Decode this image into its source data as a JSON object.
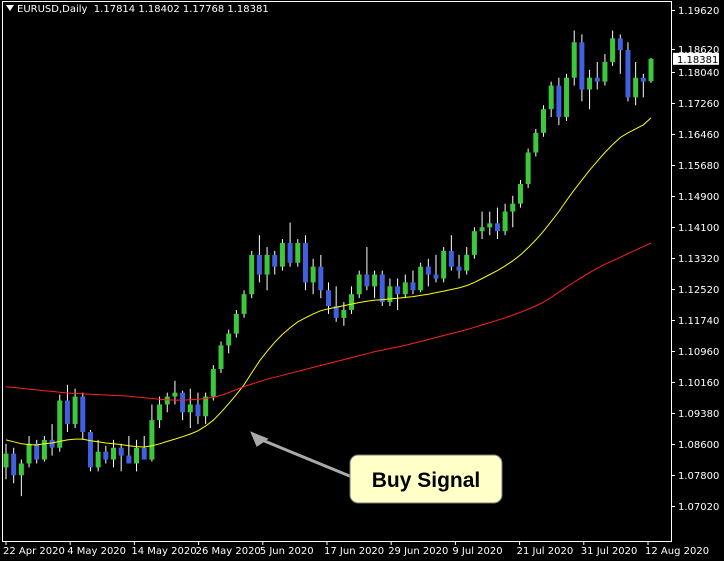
{
  "header": {
    "symbol": "EURUSD,Daily",
    "ohlc": "1.17814 1.18402 1.17768 1.18381"
  },
  "current_price_label": "1.18381",
  "annotation": {
    "text": "Buy Signal"
  },
  "colors": {
    "background": "#000000",
    "bull": "#3cc83c",
    "bear": "#4060e0",
    "fast_ma": "#ffff00",
    "slow_ma": "#ff2020",
    "axis": "#ffffff",
    "callout_bg": "#ffffc8"
  },
  "chart_data": {
    "type": "candlestick",
    "title": "EURUSD,Daily",
    "ylim": [
      1.0702,
      1.1962
    ],
    "y_ticks": [
      "1.19620",
      "1.18620",
      "1.18040",
      "1.17260",
      "1.16460",
      "1.15680",
      "1.14900",
      "1.14100",
      "1.13320",
      "1.12520",
      "1.11740",
      "1.10960",
      "1.10160",
      "1.09380",
      "1.08600",
      "1.07800",
      "1.07020"
    ],
    "x_ticks": [
      "22 Apr 2020",
      "4 May 2020",
      "14 May 2020",
      "26 May 2020",
      "5 Jun 2020",
      "17 Jun 2020",
      "29 Jun 2020",
      "9 Jul 2020",
      "21 Jul 2020",
      "31 Jul 2020",
      "12 Aug 2020"
    ],
    "candles": [
      [
        1.08,
        1.086,
        1.077,
        1.0835
      ],
      [
        1.0835,
        1.085,
        1.076,
        1.078
      ],
      [
        1.078,
        1.082,
        1.0727,
        1.081
      ],
      [
        1.081,
        1.088,
        1.08,
        1.086
      ],
      [
        1.086,
        1.087,
        1.081,
        1.082
      ],
      [
        1.082,
        1.088,
        1.0815,
        1.087
      ],
      [
        1.087,
        1.091,
        1.083,
        1.085
      ],
      [
        1.085,
        1.0985,
        1.084,
        1.097
      ],
      [
        1.097,
        1.101,
        1.089,
        1.091
      ],
      [
        1.091,
        1.1,
        1.09,
        1.098
      ],
      [
        1.098,
        1.099,
        1.087,
        1.089
      ],
      [
        1.089,
        1.0895,
        1.079,
        1.08
      ],
      [
        1.08,
        1.087,
        1.079,
        1.084
      ],
      [
        1.084,
        1.0855,
        1.081,
        1.082
      ],
      [
        1.082,
        1.087,
        1.08,
        1.085
      ],
      [
        1.085,
        1.086,
        1.079,
        1.083
      ],
      [
        1.083,
        1.088,
        1.081,
        1.081
      ],
      [
        1.081,
        1.087,
        1.079,
        1.085
      ],
      [
        1.085,
        1.088,
        1.082,
        1.082
      ],
      [
        1.082,
        1.096,
        1.0815,
        1.092
      ],
      [
        1.092,
        1.098,
        1.09,
        1.096
      ],
      [
        1.096,
        1.099,
        1.094,
        1.098
      ],
      [
        1.098,
        1.102,
        1.096,
        1.099
      ],
      [
        1.099,
        1.0995,
        1.092,
        1.094
      ],
      [
        1.094,
        1.1,
        1.09,
        1.096
      ],
      [
        1.096,
        1.099,
        1.091,
        1.093
      ],
      [
        1.093,
        1.099,
        1.091,
        1.098
      ],
      [
        1.098,
        1.106,
        1.097,
        1.105
      ],
      [
        1.105,
        1.112,
        1.104,
        1.111
      ],
      [
        1.111,
        1.115,
        1.109,
        1.114
      ],
      [
        1.114,
        1.12,
        1.113,
        1.119
      ],
      [
        1.119,
        1.125,
        1.118,
        1.124
      ],
      [
        1.124,
        1.135,
        1.123,
        1.134
      ],
      [
        1.134,
        1.139,
        1.127,
        1.129
      ],
      [
        1.129,
        1.136,
        1.125,
        1.134
      ],
      [
        1.134,
        1.135,
        1.129,
        1.131
      ],
      [
        1.131,
        1.138,
        1.13,
        1.137
      ],
      [
        1.137,
        1.1422,
        1.131,
        1.132
      ],
      [
        1.132,
        1.138,
        1.131,
        1.137
      ],
      [
        1.137,
        1.139,
        1.125,
        1.127
      ],
      [
        1.127,
        1.133,
        1.124,
        1.131
      ],
      [
        1.131,
        1.134,
        1.123,
        1.125
      ],
      [
        1.125,
        1.127,
        1.119,
        1.121
      ],
      [
        1.121,
        1.126,
        1.117,
        1.118
      ],
      [
        1.118,
        1.122,
        1.116,
        1.12
      ],
      [
        1.12,
        1.126,
        1.119,
        1.124
      ],
      [
        1.124,
        1.13,
        1.123,
        1.129
      ],
      [
        1.129,
        1.136,
        1.125,
        1.126
      ],
      [
        1.126,
        1.13,
        1.123,
        1.129
      ],
      [
        1.129,
        1.13,
        1.121,
        1.122
      ],
      [
        1.122,
        1.128,
        1.121,
        1.126
      ],
      [
        1.126,
        1.128,
        1.12,
        1.124
      ],
      [
        1.124,
        1.129,
        1.123,
        1.127
      ],
      [
        1.127,
        1.13,
        1.124,
        1.125
      ],
      [
        1.125,
        1.132,
        1.1245,
        1.131
      ],
      [
        1.131,
        1.133,
        1.126,
        1.129
      ],
      [
        1.129,
        1.134,
        1.127,
        1.128
      ],
      [
        1.128,
        1.136,
        1.127,
        1.135
      ],
      [
        1.135,
        1.139,
        1.13,
        1.131
      ],
      [
        1.131,
        1.134,
        1.128,
        1.13
      ],
      [
        1.13,
        1.136,
        1.129,
        1.134
      ],
      [
        1.134,
        1.141,
        1.133,
        1.14
      ],
      [
        1.14,
        1.145,
        1.138,
        1.141
      ],
      [
        1.141,
        1.145,
        1.139,
        1.142
      ],
      [
        1.142,
        1.146,
        1.138,
        1.14
      ],
      [
        1.14,
        1.147,
        1.139,
        1.145
      ],
      [
        1.145,
        1.149,
        1.141,
        1.147
      ],
      [
        1.147,
        1.153,
        1.146,
        1.152
      ],
      [
        1.152,
        1.161,
        1.151,
        1.16
      ],
      [
        1.16,
        1.166,
        1.159,
        1.165
      ],
      [
        1.165,
        1.172,
        1.164,
        1.171
      ],
      [
        1.171,
        1.178,
        1.169,
        1.177
      ],
      [
        1.177,
        1.179,
        1.167,
        1.169
      ],
      [
        1.169,
        1.18,
        1.168,
        1.179
      ],
      [
        1.179,
        1.191,
        1.177,
        1.188
      ],
      [
        1.188,
        1.19,
        1.173,
        1.176
      ],
      [
        1.176,
        1.181,
        1.171,
        1.179
      ],
      [
        1.179,
        1.183,
        1.176,
        1.178
      ],
      [
        1.178,
        1.185,
        1.177,
        1.183
      ],
      [
        1.183,
        1.191,
        1.182,
        1.189
      ],
      [
        1.189,
        1.19,
        1.18,
        1.186
      ],
      [
        1.186,
        1.188,
        1.173,
        1.174
      ],
      [
        1.174,
        1.183,
        1.172,
        1.179
      ],
      [
        1.179,
        1.18,
        1.174,
        1.178
      ],
      [
        1.1781,
        1.184,
        1.1777,
        1.1838
      ]
    ],
    "series": [
      {
        "values": [
          1.087,
          1.0865,
          1.086,
          1.0858,
          1.0857,
          1.086,
          1.0862,
          1.0866,
          1.087,
          1.0872,
          1.0872,
          1.0868,
          1.0865,
          1.0862,
          1.086,
          1.0858,
          1.0855,
          1.0853,
          1.0852,
          1.0855,
          1.086,
          1.0866,
          1.0872,
          1.0878,
          1.0885,
          1.0893,
          1.0905,
          1.092,
          1.094,
          1.0962,
          1.0985,
          1.101,
          1.104,
          1.107,
          1.1095,
          1.1118,
          1.1138,
          1.1155,
          1.117,
          1.118,
          1.119,
          1.1198,
          1.1203,
          1.1207,
          1.1211,
          1.1215,
          1.1219,
          1.1222,
          1.1225,
          1.1226,
          1.1228,
          1.123,
          1.1232,
          1.1234,
          1.1237,
          1.124,
          1.1244,
          1.1248,
          1.1252,
          1.1256,
          1.1262,
          1.127,
          1.128,
          1.129,
          1.13,
          1.1312,
          1.1325,
          1.134,
          1.1358,
          1.1378,
          1.14,
          1.1425,
          1.145,
          1.1478,
          1.1505,
          1.153,
          1.1555,
          1.1578,
          1.16,
          1.162,
          1.1638,
          1.165,
          1.166,
          1.167,
          1.1688
        ]
      },
      {
        "values": [
          1.1005,
          1.1003,
          1.1001,
          1.0999,
          1.0997,
          1.0995,
          1.0993,
          1.0991,
          1.0989,
          1.0988,
          1.0987,
          1.0986,
          1.0985,
          1.0984,
          1.0983,
          1.0982,
          1.0981,
          1.0979,
          1.0977,
          1.0975,
          1.0973,
          1.0972,
          1.0971,
          1.0971,
          1.0972,
          1.0973,
          1.0975,
          1.0978,
          1.0983,
          1.099,
          1.0998,
          1.1005,
          1.1012,
          1.1018,
          1.1024,
          1.1029,
          1.1034,
          1.1039,
          1.1044,
          1.1049,
          1.1054,
          1.1059,
          1.1064,
          1.1069,
          1.1074,
          1.1079,
          1.1084,
          1.1089,
          1.1094,
          1.1098,
          1.1102,
          1.1106,
          1.111,
          1.1115,
          1.112,
          1.1125,
          1.113,
          1.1135,
          1.114,
          1.1145,
          1.115,
          1.1156,
          1.1162,
          1.1168,
          1.1174,
          1.118,
          1.1187,
          1.1194,
          1.1202,
          1.121,
          1.122,
          1.1232,
          1.1245,
          1.1258,
          1.1271,
          1.1283,
          1.1295,
          1.1306,
          1.1316,
          1.1325,
          1.1334,
          1.1343,
          1.1352,
          1.1361,
          1.137
        ]
      }
    ]
  }
}
